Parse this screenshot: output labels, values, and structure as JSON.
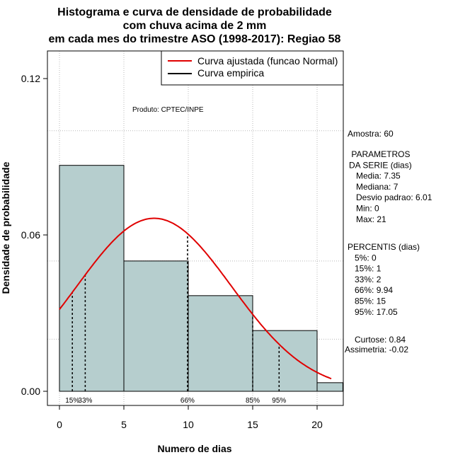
{
  "chart_data": {
    "type": "bar",
    "title_lines": [
      "Histograma e curva de densidade de probabilidade",
      "com chuva acima de 2 mm",
      "em cada mes do trimestre ASO (1998-2017): Regiao 58"
    ],
    "xlabel": "Numero de dias",
    "ylabel": "Densidade de probabilidade",
    "xlim": [
      -1.5,
      22
    ],
    "ylim": [
      -0.005,
      0.133
    ],
    "x_ticks": [
      "0",
      "5",
      "10",
      "15",
      "20"
    ],
    "x_tick_values": [
      0,
      5,
      10,
      15,
      20
    ],
    "y_ticks": [
      "0.00",
      "0.06",
      "0.12"
    ],
    "y_tick_values": [
      0,
      0.06,
      0.12
    ],
    "grid_x": [
      0,
      5,
      10,
      15,
      20
    ],
    "grid_y": [
      0.02,
      0.05,
      0.1
    ],
    "bins": [
      {
        "start": 0,
        "end": 5,
        "density": 0.0867
      },
      {
        "start": 5,
        "end": 10,
        "density": 0.05
      },
      {
        "start": 10,
        "end": 15,
        "density": 0.0367
      },
      {
        "start": 15,
        "end": 20,
        "density": 0.0233
      },
      {
        "start": 20,
        "end": 22,
        "density": 0.0033
      }
    ],
    "bar_color": "#b6cece",
    "normal_curve": {
      "mean": 7.35,
      "sd": 6.01,
      "x_from": 0,
      "x_to": 21.1,
      "color": "#e00000",
      "label": "Curva ajustada (funcao Normal)"
    },
    "empirical_label": "Curva empirica",
    "percentiles": [
      {
        "x": 1,
        "label": "15%"
      },
      {
        "x": 2,
        "label": "33%"
      },
      {
        "x": 9.94,
        "label": "66%"
      },
      {
        "x": 15,
        "label": "85%"
      },
      {
        "x": 17.05,
        "label": "95%"
      }
    ],
    "legend_position": "top-right"
  },
  "annotations": {
    "produto": "Produto: CPTEC/INPE",
    "amostra": "Amostra: 60",
    "param_lines": [
      " PARAMETROS",
      "DA SERIE (dias)",
      "   Media: 7.35",
      "   Mediana: 7",
      "   Desvio padrao: 6.01",
      "   Min: 0",
      "   Max: 21"
    ],
    "percentis_lines": [
      "PERCENTIS (dias)",
      "   5%: 0",
      "   15%: 1",
      "   33%: 2",
      "   66%: 9.94",
      "   85%: 15",
      "   95%: 17.05"
    ],
    "curtose": "Curtose: 0.84",
    "assimetria": "Assimetria: -0.02"
  }
}
